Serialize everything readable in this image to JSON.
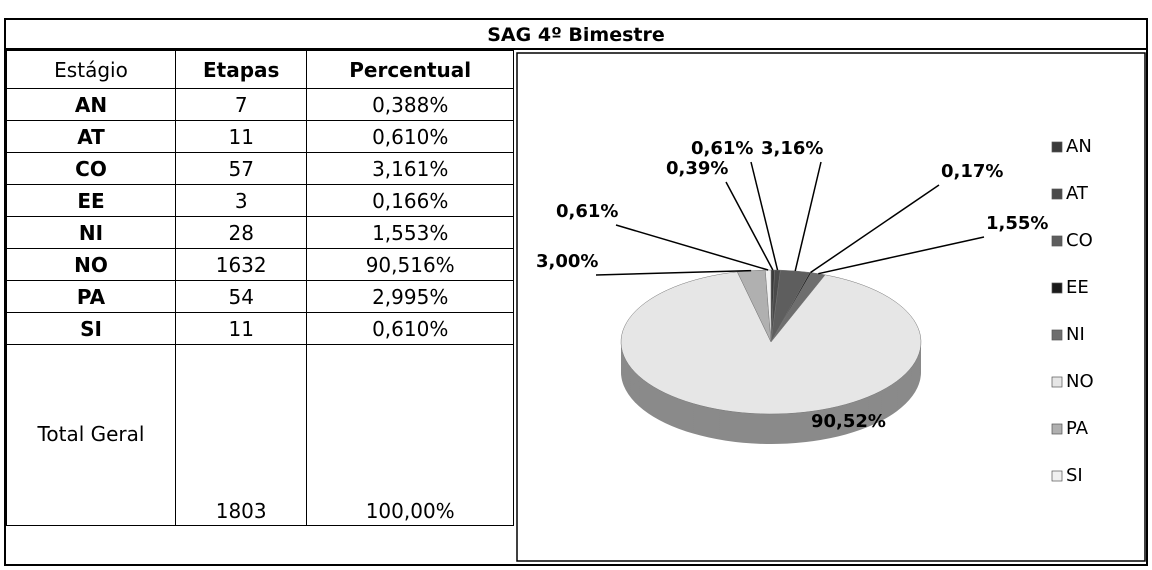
{
  "title": "SAG 4º Bimestre",
  "table": {
    "headers": [
      "Estágio",
      "Etapas",
      "Percentual"
    ],
    "rows": [
      [
        "AN",
        "7",
        "0,388%"
      ],
      [
        "AT",
        "11",
        "0,610%"
      ],
      [
        "CO",
        "57",
        "3,161%"
      ],
      [
        "EE",
        "3",
        "0,166%"
      ],
      [
        "NI",
        "28",
        "1,553%"
      ],
      [
        "NO",
        "1632",
        "90,516%"
      ],
      [
        "PA",
        "54",
        "2,995%"
      ],
      [
        "SI",
        "11",
        "0,610%"
      ]
    ],
    "total": [
      "Total Geral",
      "1803",
      "100,00%"
    ]
  },
  "chart_data": {
    "type": "pie",
    "categories": [
      "AN",
      "AT",
      "CO",
      "EE",
      "NI",
      "NO",
      "PA",
      "SI"
    ],
    "values": [
      0.39,
      0.61,
      3.16,
      0.17,
      1.55,
      90.52,
      3.0,
      0.61
    ],
    "value_labels": [
      "0,39%",
      "0,61%",
      "3,16%",
      "0,17%",
      "1,55%",
      "90,52%",
      "3,00%",
      "0,61%"
    ],
    "colors": [
      "#3a3a3a",
      "#4a4a4a",
      "#5e5e5e",
      "#1a1a1a",
      "#6e6e6e",
      "#e6e6e6",
      "#b0b0b0",
      "#f0f0f0"
    ]
  }
}
